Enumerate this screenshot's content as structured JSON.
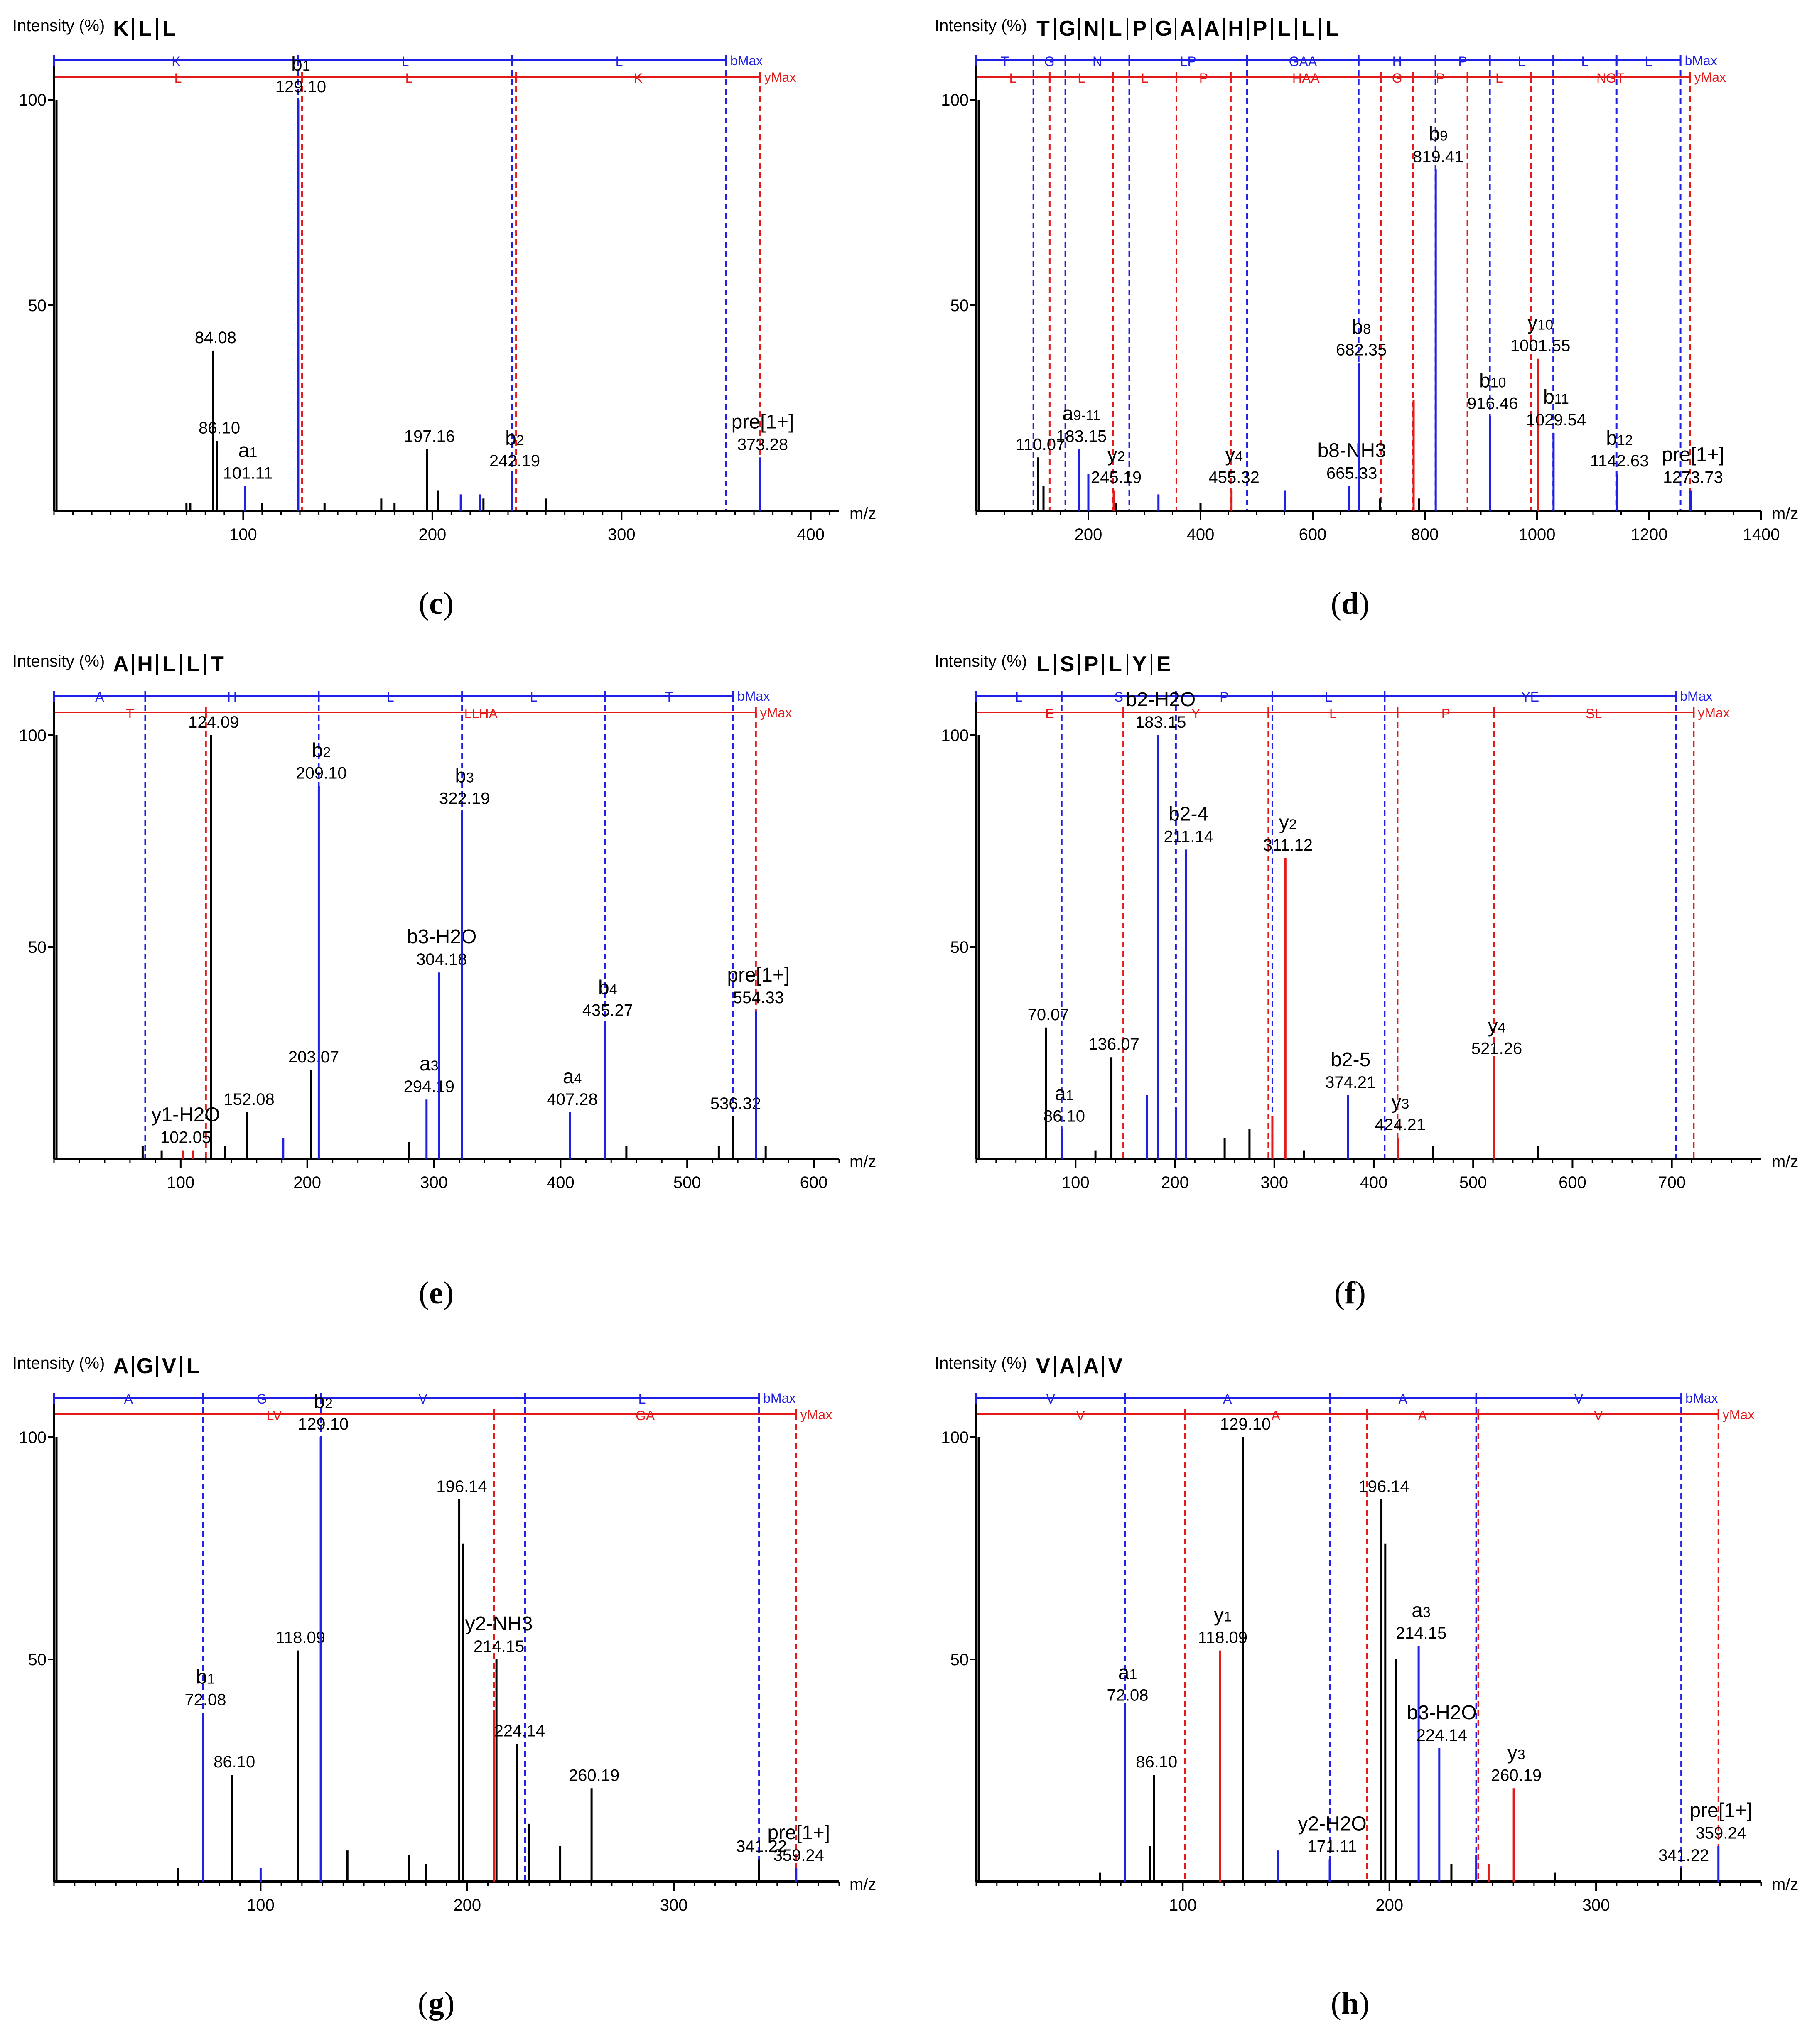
{
  "colors": {
    "blue": "#1f1fe6",
    "red": "#e41a1a",
    "black": "#000000"
  },
  "labels": {
    "intensity": "Intensity (%)",
    "mz": "m/z",
    "bmax": "bMax",
    "ymax": "yMax",
    "y100": "100",
    "y50": "50"
  },
  "chart_data": [
    {
      "type": "bar",
      "panel": "c",
      "sequence": [
        "K",
        "L",
        "L"
      ],
      "xlim": [
        0,
        415
      ],
      "xticks": [
        100,
        200,
        300,
        400
      ],
      "ylim": [
        0,
        100
      ],
      "b_ladder": {
        "positions": [
          0,
          129.1,
          242.19,
          355.28
        ],
        "residues": [
          "K",
          "L",
          "L"
        ]
      },
      "y_ladder": {
        "positions": [
          0,
          131.1,
          244.19,
          373.28
        ],
        "residues": [
          "L",
          "L",
          "K"
        ]
      },
      "peaks": [
        {
          "mz": 84.08,
          "i": 39,
          "c": "k",
          "label": "84.08"
        },
        {
          "mz": 86.1,
          "i": 17,
          "c": "k",
          "label": "86.10"
        },
        {
          "mz": 101.11,
          "i": 6,
          "c": "b",
          "ion": "a",
          "sub": "1",
          "label": "101.11"
        },
        {
          "mz": 129.1,
          "i": 100,
          "c": "b",
          "ion": "b",
          "sub": "1",
          "label": "129.10"
        },
        {
          "mz": 197.16,
          "i": 15,
          "c": "k",
          "label": "197.16"
        },
        {
          "mz": 242.19,
          "i": 9,
          "c": "b",
          "ion": "b",
          "sub": "2",
          "label": "242.19"
        },
        {
          "mz": 373.28,
          "i": 13,
          "c": "b",
          "ion": "pre[1+]",
          "sub": "",
          "label": "373.28"
        },
        {
          "mz": 70,
          "i": 2,
          "c": "k"
        },
        {
          "mz": 72,
          "i": 2,
          "c": "k"
        },
        {
          "mz": 110,
          "i": 2,
          "c": "k"
        },
        {
          "mz": 143,
          "i": 2,
          "c": "k"
        },
        {
          "mz": 173,
          "i": 3,
          "c": "k"
        },
        {
          "mz": 180,
          "i": 2,
          "c": "k"
        },
        {
          "mz": 203,
          "i": 5,
          "c": "k"
        },
        {
          "mz": 215,
          "i": 4,
          "c": "b"
        },
        {
          "mz": 225,
          "i": 4,
          "c": "b"
        },
        {
          "mz": 227,
          "i": 3,
          "c": "k"
        },
        {
          "mz": 260,
          "i": 3,
          "c": "k"
        }
      ]
    },
    {
      "type": "bar",
      "panel": "d",
      "sequence": [
        "T",
        "G",
        "N",
        "L",
        "P",
        "G",
        "A",
        "A",
        "H",
        "P",
        "L",
        "L",
        "L"
      ],
      "xlim": [
        0,
        1400
      ],
      "xticks": [
        200,
        400,
        600,
        800,
        1000,
        1200,
        1400
      ],
      "ylim": [
        0,
        100
      ],
      "b_ladder": {
        "positions": [
          0,
          102,
          159,
          273,
          483,
          682,
          819,
          916,
          1029,
          1142,
          1256
        ],
        "residues": [
          "T",
          "G",
          "N",
          "LP",
          "GAA",
          "H",
          "P",
          "L",
          "L",
          "L"
        ]
      },
      "y_ladder": {
        "positions": [
          0,
          131,
          244,
          357,
          454,
          722,
          779,
          876,
          989,
          1273
        ],
        "residues": [
          "L",
          "L",
          "L",
          "P",
          "HAA",
          "G",
          "P",
          "L",
          "NGT"
        ]
      },
      "peaks": [
        {
          "mz": 110.07,
          "i": 13,
          "c": "k",
          "label": "110.07"
        },
        {
          "mz": 183.15,
          "i": 15,
          "c": "b",
          "ion": "a",
          "sub": "9-11",
          "label": "183.15"
        },
        {
          "mz": 245.19,
          "i": 5,
          "c": "r",
          "ion": "y",
          "sub": "2",
          "label": "245.19"
        },
        {
          "mz": 455.32,
          "i": 5,
          "c": "r",
          "ion": "y",
          "sub": "4",
          "label": "455.32"
        },
        {
          "mz": 665.33,
          "i": 6,
          "c": "b",
          "ion": "b8-NH3",
          "sub": "",
          "label": "665.33"
        },
        {
          "mz": 682.35,
          "i": 36,
          "c": "b",
          "ion": "b",
          "sub": "8",
          "label": "682.35"
        },
        {
          "mz": 819.41,
          "i": 83,
          "c": "b",
          "ion": "b",
          "sub": "9",
          "label": "819.41"
        },
        {
          "mz": 916.46,
          "i": 23,
          "c": "b",
          "ion": "b",
          "sub": "10",
          "label": "916.46"
        },
        {
          "mz": 1001.55,
          "i": 37,
          "c": "r",
          "ion": "y",
          "sub": "10",
          "label": "1001.55"
        },
        {
          "mz": 1029.54,
          "i": 19,
          "c": "b",
          "ion": "b",
          "sub": "11",
          "label": "1029.54"
        },
        {
          "mz": 1142.63,
          "i": 9,
          "c": "b",
          "ion": "b",
          "sub": "12",
          "label": "1142.63"
        },
        {
          "mz": 1273.73,
          "i": 5,
          "c": "b",
          "ion": "pre[1+]",
          "sub": "",
          "label": "1273.73"
        },
        {
          "mz": 120,
          "i": 6,
          "c": "k"
        },
        {
          "mz": 200,
          "i": 9,
          "c": "b"
        },
        {
          "mz": 325,
          "i": 4,
          "c": "b"
        },
        {
          "mz": 550,
          "i": 5,
          "c": "b"
        },
        {
          "mz": 780,
          "i": 27,
          "c": "r"
        },
        {
          "mz": 790,
          "i": 3,
          "c": "k"
        },
        {
          "mz": 250,
          "i": 2,
          "c": "k"
        },
        {
          "mz": 400,
          "i": 2,
          "c": "k"
        },
        {
          "mz": 720,
          "i": 3,
          "c": "k"
        }
      ]
    },
    {
      "type": "bar",
      "panel": "e",
      "sequence": [
        "A",
        "H",
        "L",
        "L",
        "T"
      ],
      "xlim": [
        0,
        620
      ],
      "xticks": [
        100,
        200,
        300,
        400,
        500,
        600
      ],
      "ylim": [
        0,
        100
      ],
      "b_ladder": {
        "positions": [
          0,
          72,
          209.1,
          322.19,
          435.27,
          536.32
        ],
        "residues": [
          "A",
          "H",
          "L",
          "L",
          "T"
        ]
      },
      "y_ladder": {
        "positions": [
          0,
          120,
          554.33
        ],
        "residues": [
          "T",
          "LLHA"
        ]
      },
      "peaks": [
        {
          "mz": 102.05,
          "i": 2,
          "c": "r",
          "ion": "y1-H2O",
          "sub": "",
          "label": "102.05"
        },
        {
          "mz": 124.09,
          "i": 100,
          "c": "k",
          "label": "124.09"
        },
        {
          "mz": 152.08,
          "i": 11,
          "c": "k",
          "label": "152.08"
        },
        {
          "mz": 203.07,
          "i": 21,
          "c": "k",
          "label": "203.07"
        },
        {
          "mz": 209.1,
          "i": 88,
          "c": "b",
          "ion": "b",
          "sub": "2",
          "label": "209.10"
        },
        {
          "mz": 294.19,
          "i": 14,
          "c": "b",
          "ion": "a",
          "sub": "3",
          "label": "294.19"
        },
        {
          "mz": 304.18,
          "i": 44,
          "c": "b",
          "ion": "b3-H2O",
          "sub": "",
          "label": "304.18"
        },
        {
          "mz": 322.19,
          "i": 82,
          "c": "b",
          "ion": "b",
          "sub": "3",
          "label": "322.19"
        },
        {
          "mz": 407.28,
          "i": 11,
          "c": "b",
          "ion": "a",
          "sub": "4",
          "label": "407.28"
        },
        {
          "mz": 435.27,
          "i": 32,
          "c": "b",
          "ion": "b",
          "sub": "4",
          "label": "435.27"
        },
        {
          "mz": 536.32,
          "i": 10,
          "c": "k",
          "label": "536.32"
        },
        {
          "mz": 554.33,
          "i": 35,
          "c": "b",
          "ion": "pre[1+]",
          "sub": "",
          "label": "554.33"
        },
        {
          "mz": 70,
          "i": 3,
          "c": "k"
        },
        {
          "mz": 85,
          "i": 2,
          "c": "k"
        },
        {
          "mz": 110,
          "i": 2,
          "c": "r"
        },
        {
          "mz": 135,
          "i": 3,
          "c": "k"
        },
        {
          "mz": 181,
          "i": 5,
          "c": "b"
        },
        {
          "mz": 280,
          "i": 4,
          "c": "k"
        },
        {
          "mz": 452,
          "i": 3,
          "c": "k"
        },
        {
          "mz": 525,
          "i": 3,
          "c": "k"
        },
        {
          "mz": 562,
          "i": 3,
          "c": "k"
        }
      ]
    },
    {
      "type": "bar",
      "panel": "f",
      "sequence": [
        "L",
        "S",
        "P",
        "L",
        "Y",
        "E"
      ],
      "xlim": [
        0,
        790
      ],
      "xticks": [
        100,
        200,
        300,
        400,
        500,
        600,
        700
      ],
      "ylim": [
        0,
        100
      ],
      "b_ladder": {
        "positions": [
          0,
          86,
          201,
          298,
          411,
          704
        ],
        "residues": [
          "L",
          "S",
          "P",
          "L",
          "YE"
        ]
      },
      "y_ladder": {
        "positions": [
          0,
          148,
          294,
          424,
          521,
          722
        ],
        "residues": [
          "E",
          "Y",
          "L",
          "P",
          "SL"
        ]
      },
      "peaks": [
        {
          "mz": 70.07,
          "i": 31,
          "c": "k",
          "label": "70.07"
        },
        {
          "mz": 86.1,
          "i": 7,
          "c": "b",
          "ion": "a",
          "sub": "1",
          "label": "86.10"
        },
        {
          "mz": 136.07,
          "i": 24,
          "c": "k",
          "label": "136.07"
        },
        {
          "mz": 183.15,
          "i": 100,
          "c": "b",
          "ion": "b2-H2O",
          "sub": "",
          "label": "183.15"
        },
        {
          "mz": 211.14,
          "i": 73,
          "c": "b",
          "ion": "b2-4",
          "sub": "",
          "label": "211.14"
        },
        {
          "mz": 311.12,
          "i": 71,
          "c": "r",
          "ion": "y",
          "sub": "2",
          "label": "311.12"
        },
        {
          "mz": 374.21,
          "i": 15,
          "c": "b",
          "ion": "b2-5",
          "sub": "",
          "label": "374.21"
        },
        {
          "mz": 424.21,
          "i": 5,
          "c": "r",
          "ion": "y",
          "sub": "3",
          "label": "424.21"
        },
        {
          "mz": 521.26,
          "i": 23,
          "c": "r",
          "ion": "y",
          "sub": "4",
          "label": "521.26"
        },
        {
          "mz": 172,
          "i": 15,
          "c": "b"
        },
        {
          "mz": 201,
          "i": 12,
          "c": "b"
        },
        {
          "mz": 250,
          "i": 5,
          "c": "k"
        },
        {
          "mz": 275,
          "i": 7,
          "c": "k"
        },
        {
          "mz": 298,
          "i": 10,
          "c": "r"
        },
        {
          "mz": 460,
          "i": 3,
          "c": "k"
        },
        {
          "mz": 565,
          "i": 3,
          "c": "k"
        },
        {
          "mz": 120,
          "i": 2,
          "c": "k"
        },
        {
          "mz": 330,
          "i": 2,
          "c": "k"
        }
      ]
    },
    {
      "type": "bar",
      "panel": "g",
      "sequence": [
        "A",
        "G",
        "V",
        "L"
      ],
      "xlim": [
        0,
        380
      ],
      "xticks": [
        100,
        200,
        300
      ],
      "ylim": [
        0,
        100
      ],
      "b_ladder": {
        "positions": [
          0,
          72.08,
          129.1,
          228,
          341.22
        ],
        "residues": [
          "A",
          "G",
          "V",
          "L"
        ]
      },
      "y_ladder": {
        "positions": [
          0,
          213,
          359.24
        ],
        "residues": [
          "LV",
          "GA"
        ]
      },
      "peaks": [
        {
          "mz": 72.08,
          "i": 38,
          "c": "b",
          "ion": "b",
          "sub": "1",
          "label": "72.08"
        },
        {
          "mz": 86.1,
          "i": 24,
          "c": "k",
          "label": "86.10"
        },
        {
          "mz": 118.09,
          "i": 52,
          "c": "k",
          "label": "118.09"
        },
        {
          "mz": 129.1,
          "i": 100,
          "c": "b",
          "ion": "b",
          "sub": "2",
          "label": "129.10"
        },
        {
          "mz": 196.14,
          "i": 86,
          "c": "k",
          "label": "196.14"
        },
        {
          "mz": 214.15,
          "i": 50,
          "c": "k",
          "ion": "y2-NH3",
          "sub": "",
          "label": "214.15"
        },
        {
          "mz": 224.14,
          "i": 31,
          "c": "k",
          "label": "224.14"
        },
        {
          "mz": 260.19,
          "i": 21,
          "c": "k",
          "label": "260.19"
        },
        {
          "mz": 341.22,
          "i": 5,
          "c": "k",
          "label": "341.22"
        },
        {
          "mz": 359.24,
          "i": 3,
          "c": "b",
          "ion": "pre[1+]",
          "sub": "",
          "label": "359.24"
        },
        {
          "mz": 198,
          "i": 76,
          "c": "k"
        },
        {
          "mz": 213,
          "i": 38,
          "c": "r"
        },
        {
          "mz": 230,
          "i": 13,
          "c": "k"
        },
        {
          "mz": 100,
          "i": 3,
          "c": "b"
        },
        {
          "mz": 142,
          "i": 7,
          "c": "k"
        },
        {
          "mz": 172,
          "i": 6,
          "c": "k"
        },
        {
          "mz": 245,
          "i": 8,
          "c": "k"
        },
        {
          "mz": 60,
          "i": 3,
          "c": "k"
        },
        {
          "mz": 180,
          "i": 4,
          "c": "k"
        }
      ]
    },
    {
      "type": "bar",
      "panel": "h",
      "sequence": [
        "V",
        "A",
        "A",
        "V"
      ],
      "xlim": [
        0,
        380
      ],
      "xticks": [
        100,
        200,
        300
      ],
      "ylim": [
        0,
        100
      ],
      "b_ladder": {
        "positions": [
          0,
          72.08,
          171.11,
          242,
          341.22
        ],
        "residues": [
          "V",
          "A",
          "A",
          "V"
        ]
      },
      "y_ladder": {
        "positions": [
          0,
          101,
          189,
          243,
          359.24
        ],
        "residues": [
          "V",
          "A",
          "A",
          "V"
        ]
      },
      "peaks": [
        {
          "mz": 72.08,
          "i": 39,
          "c": "b",
          "ion": "a",
          "sub": "1",
          "label": "72.08"
        },
        {
          "mz": 86.1,
          "i": 24,
          "c": "k",
          "label": "86.10"
        },
        {
          "mz": 118.09,
          "i": 52,
          "c": "r",
          "ion": "y",
          "sub": "1",
          "label": "118.09"
        },
        {
          "mz": 129.1,
          "i": 100,
          "c": "k",
          "label": "129.10"
        },
        {
          "mz": 171.11,
          "i": 5,
          "c": "b",
          "ion": "y2-H2O",
          "sub": "",
          "label": "171.11"
        },
        {
          "mz": 196.14,
          "i": 86,
          "c": "k",
          "label": "196.14"
        },
        {
          "mz": 214.15,
          "i": 53,
          "c": "b",
          "ion": "a",
          "sub": "3",
          "label": "214.15"
        },
        {
          "mz": 224.14,
          "i": 30,
          "c": "b",
          "ion": "b3-H2O",
          "sub": "",
          "label": "224.14"
        },
        {
          "mz": 260.19,
          "i": 21,
          "c": "r",
          "ion": "y",
          "sub": "3",
          "label": "260.19"
        },
        {
          "mz": 341.22,
          "i": 3,
          "c": "k",
          "label": "341.22"
        },
        {
          "mz": 359.24,
          "i": 8,
          "c": "b",
          "ion": "pre[1+]",
          "sub": "",
          "label": "359.24"
        },
        {
          "mz": 198,
          "i": 76,
          "c": "k"
        },
        {
          "mz": 203,
          "i": 50,
          "c": "k"
        },
        {
          "mz": 146,
          "i": 7,
          "c": "b"
        },
        {
          "mz": 242,
          "i": 6,
          "c": "b"
        },
        {
          "mz": 248,
          "i": 4,
          "c": "r"
        },
        {
          "mz": 84,
          "i": 8,
          "c": "k"
        },
        {
          "mz": 60,
          "i": 2,
          "c": "k"
        },
        {
          "mz": 230,
          "i": 4,
          "c": "k"
        },
        {
          "mz": 280,
          "i": 2,
          "c": "k"
        }
      ]
    }
  ],
  "captions": [
    "c",
    "d",
    "e",
    "f",
    "g",
    "h"
  ]
}
